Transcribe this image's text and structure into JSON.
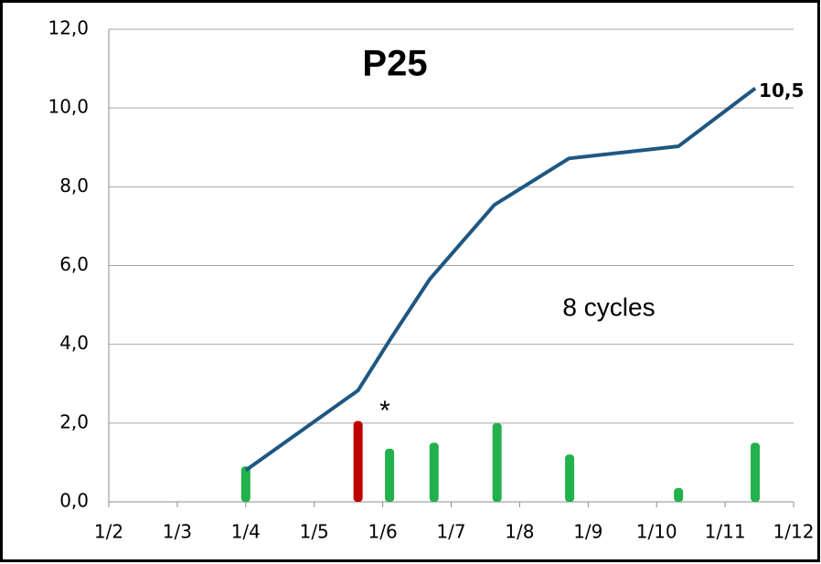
{
  "chart_data": {
    "type": "combo",
    "title": "P25",
    "annotations": [
      {
        "text": "8 cycles",
        "color": "#22b14c"
      },
      {
        "text": "*",
        "color": "#c00000"
      }
    ],
    "xlim": [
      2,
      12
    ],
    "xticks": [
      {
        "value": 2,
        "label": "1/2"
      },
      {
        "value": 3,
        "label": "1/3"
      },
      {
        "value": 4,
        "label": "1/4"
      },
      {
        "value": 5,
        "label": "1/5"
      },
      {
        "value": 6,
        "label": "1/6"
      },
      {
        "value": 7,
        "label": "1/7"
      },
      {
        "value": 8,
        "label": "1/8"
      },
      {
        "value": 9,
        "label": "1/9"
      },
      {
        "value": 10,
        "label": "1/10"
      },
      {
        "value": 11,
        "label": "1/11"
      },
      {
        "value": 12,
        "label": "1/12"
      }
    ],
    "ylim": [
      0,
      12
    ],
    "yticks": [
      {
        "value": 0,
        "label": "0,0"
      },
      {
        "value": 2,
        "label": "2,0"
      },
      {
        "value": 4,
        "label": "4,0"
      },
      {
        "value": 6,
        "label": "6,0"
      },
      {
        "value": 8,
        "label": "8,0"
      },
      {
        "value": 10,
        "label": "10,0"
      },
      {
        "value": 12,
        "label": "12,0"
      }
    ],
    "grid": true,
    "series": [
      {
        "type": "bar",
        "x": [
          4.0,
          5.64,
          6.1,
          6.75,
          7.67,
          8.73,
          10.32,
          11.44
        ],
        "values": [
          0.9,
          2.05,
          1.35,
          1.5,
          2.0,
          1.2,
          0.35,
          1.5
        ],
        "colors": [
          "#22b14c",
          "#c00000",
          "#22b14c",
          "#22b14c",
          "#22b14c",
          "#22b14c",
          "#22b14c",
          "#22b14c"
        ]
      },
      {
        "type": "line",
        "color": "#1f5783",
        "x": [
          4.0,
          5.64,
          6.13,
          6.69,
          7.63,
          8.72,
          10.32,
          11.44
        ],
        "values": [
          0.8,
          2.83,
          4.18,
          5.66,
          7.54,
          8.72,
          9.03,
          10.5
        ],
        "value_labels": [
          null,
          null,
          null,
          null,
          null,
          null,
          null,
          "10,5"
        ]
      }
    ]
  }
}
